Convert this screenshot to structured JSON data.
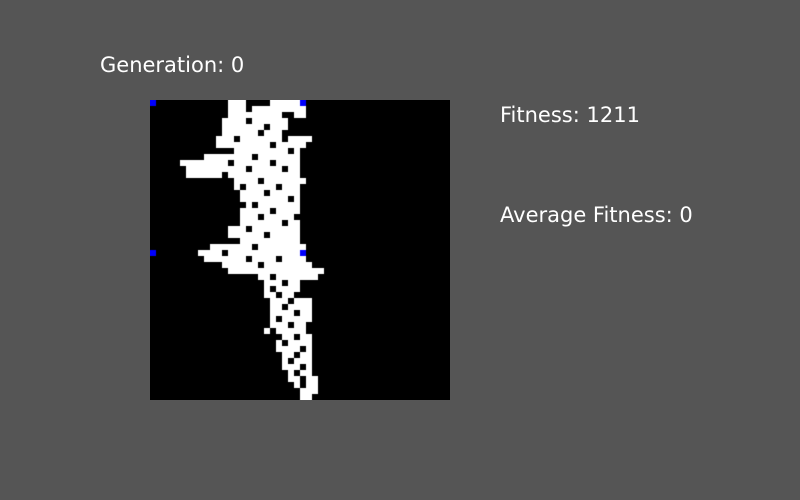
{
  "labels": {
    "generation": "Generation: 0",
    "fitness": "Fitness: 1211",
    "average_fitness": "Average Fitness: 0"
  },
  "colors": {
    "background": "#555555",
    "grid_background": "#000000",
    "cell_on": "#ffffff",
    "marker": "#0000ff",
    "text": "#ffffff"
  }
}
